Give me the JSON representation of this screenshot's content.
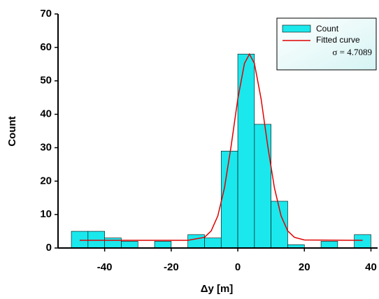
{
  "chart_data": {
    "type": "histogram",
    "xlabel": "Δy [m]",
    "ylabel": "Count",
    "bins": [
      -50,
      -45,
      -40,
      -35,
      -30,
      -25,
      -20,
      -15,
      -10,
      -5,
      0,
      5,
      10,
      15,
      20,
      25,
      30,
      35,
      40
    ],
    "series": [
      {
        "name": "Count",
        "color": "#1ae8ec",
        "values": [
          5,
          5,
          3,
          2,
          0,
          2,
          0,
          4,
          3,
          29,
          58,
          37,
          14,
          1,
          0,
          2,
          0,
          4
        ]
      },
      {
        "name": "Fitted curve",
        "type": "line",
        "color": "#e00000",
        "x": [
          -47.5,
          -15,
          -10,
          -8,
          -6,
          -4,
          -2,
          0,
          2,
          3.5,
          5,
          7,
          9,
          11,
          13,
          15,
          17,
          20,
          37.5
        ],
        "values": [
          2.3,
          2.3,
          3.2,
          5.1,
          9.6,
          18.0,
          30.5,
          44.6,
          55.2,
          58.0,
          55.2,
          44.6,
          30.5,
          18.0,
          9.6,
          5.1,
          3.2,
          2.4,
          2.3
        ]
      }
    ],
    "annotation": "σ = 4.7089",
    "xlim": [
      -54,
      42
    ],
    "ylim": [
      0,
      70
    ],
    "xticks": [
      -40,
      -20,
      0,
      20,
      40
    ],
    "yticks": [
      0,
      10,
      20,
      30,
      40,
      50,
      60,
      70
    ],
    "legend": "upper right"
  }
}
